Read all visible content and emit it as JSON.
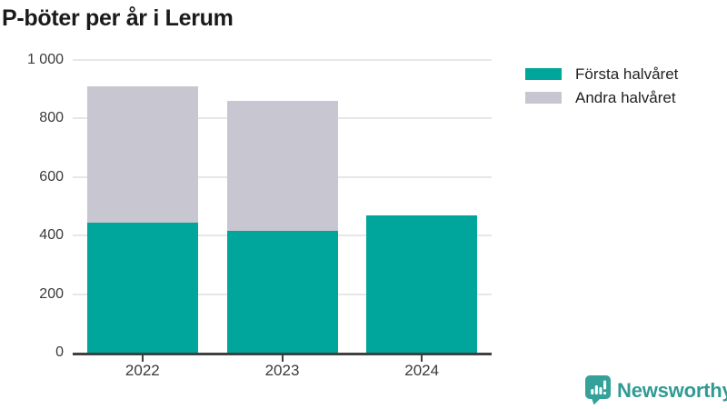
{
  "title": "P-böter per år i Lerum",
  "chart_data": {
    "type": "bar",
    "stacked": true,
    "title": "P-böter per år i Lerum",
    "categories": [
      "2022",
      "2023",
      "2024"
    ],
    "series": [
      {
        "name": "Första halvåret",
        "color": "#00a59b",
        "values": [
          445,
          415,
          470
        ]
      },
      {
        "name": "Andra halvåret",
        "color": "#c8c6d0",
        "values": [
          465,
          445,
          0
        ]
      }
    ],
    "xlabel": "",
    "ylabel": "",
    "ylim": [
      0,
      1000
    ],
    "yticks": [
      0,
      200,
      400,
      600,
      800,
      1000
    ],
    "ytick_labels": [
      "0",
      "200",
      "400",
      "600",
      "800",
      "1 000"
    ],
    "grid": true,
    "legend_position": "right-top"
  },
  "legend": {
    "items": [
      {
        "label": "Första halvåret",
        "color": "#00a59b"
      },
      {
        "label": "Andra halvåret",
        "color": "#c8c6d0"
      }
    ]
  },
  "footer": {
    "brand": "Newsworthy"
  },
  "colors": {
    "teal": "#00a59b",
    "gray": "#c8c6d0",
    "grid": "#e7e7e7",
    "axis": "#404040",
    "text": "#3a3a3a",
    "title": "#1a1a1a",
    "brand": "#319a93"
  }
}
